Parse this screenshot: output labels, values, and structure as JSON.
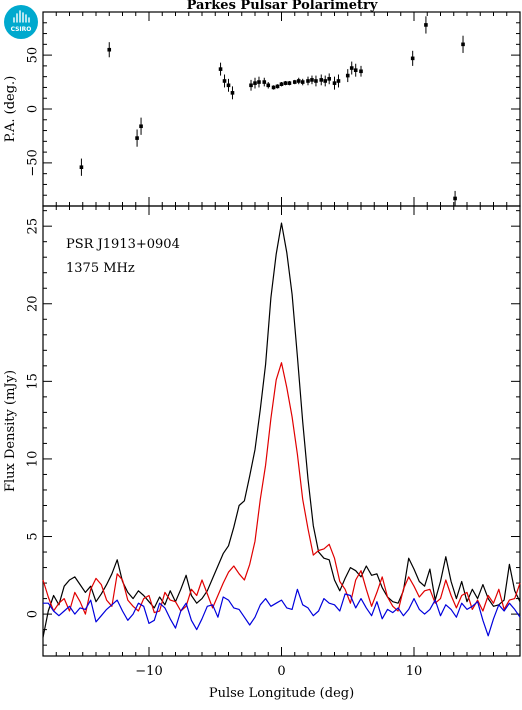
{
  "title": "Parkes Pulsar Polarimetry",
  "logo": {
    "text": "CSIRO",
    "color": "#00a9ce"
  },
  "annotations": {
    "psr": "PSR J1913+0904",
    "freq": "1375 MHz"
  },
  "chart_data": [
    {
      "type": "scatter",
      "name": "position-angle",
      "ylabel": "P.A. (deg.)",
      "xlim": [
        -18,
        18
      ],
      "ylim": [
        -90,
        90
      ],
      "yticks": [
        -50,
        0,
        50
      ],
      "points": [
        {
          "x": -15.1,
          "y": -54,
          "err": 8
        },
        {
          "x": -13.0,
          "y": 55,
          "err": 7
        },
        {
          "x": -10.9,
          "y": -27,
          "err": 8
        },
        {
          "x": -10.6,
          "y": -16,
          "err": 8
        },
        {
          "x": -4.6,
          "y": 37,
          "err": 6
        },
        {
          "x": -4.3,
          "y": 26,
          "err": 6
        },
        {
          "x": -4.0,
          "y": 22,
          "err": 6
        },
        {
          "x": -3.7,
          "y": 15,
          "err": 6
        },
        {
          "x": -2.3,
          "y": 22,
          "err": 5
        },
        {
          "x": -2.0,
          "y": 24,
          "err": 5
        },
        {
          "x": -1.7,
          "y": 25,
          "err": 5
        },
        {
          "x": -1.3,
          "y": 25,
          "err": 4
        },
        {
          "x": -1.0,
          "y": 22,
          "err": 3
        },
        {
          "x": -0.6,
          "y": 20,
          "err": 2
        },
        {
          "x": -0.3,
          "y": 21,
          "err": 2
        },
        {
          "x": 0.0,
          "y": 23,
          "err": 2
        },
        {
          "x": 0.3,
          "y": 24,
          "err": 2
        },
        {
          "x": 0.6,
          "y": 24,
          "err": 2
        },
        {
          "x": 1.0,
          "y": 25,
          "err": 2
        },
        {
          "x": 1.3,
          "y": 26,
          "err": 3
        },
        {
          "x": 1.6,
          "y": 25,
          "err": 3
        },
        {
          "x": 2.0,
          "y": 26,
          "err": 4
        },
        {
          "x": 2.3,
          "y": 27,
          "err": 4
        },
        {
          "x": 2.6,
          "y": 26,
          "err": 5
        },
        {
          "x": 3.0,
          "y": 27,
          "err": 5
        },
        {
          "x": 3.3,
          "y": 26,
          "err": 5
        },
        {
          "x": 3.6,
          "y": 28,
          "err": 5
        },
        {
          "x": 4.0,
          "y": 24,
          "err": 6
        },
        {
          "x": 4.3,
          "y": 26,
          "err": 6
        },
        {
          "x": 5.0,
          "y": 31,
          "err": 6
        },
        {
          "x": 5.3,
          "y": 38,
          "err": 6
        },
        {
          "x": 5.6,
          "y": 36,
          "err": 6
        },
        {
          "x": 6.0,
          "y": 35,
          "err": 5
        },
        {
          "x": 9.9,
          "y": 47,
          "err": 7
        },
        {
          "x": 10.9,
          "y": 78,
          "err": 8
        },
        {
          "x": 13.1,
          "y": -83,
          "err": 7
        },
        {
          "x": 13.7,
          "y": 60,
          "err": 8
        }
      ]
    },
    {
      "type": "line",
      "name": "flux-profile",
      "xlabel": "Pulse Longitude (deg)",
      "ylabel": "Flux Density (mJy)",
      "xlim": [
        -18,
        18
      ],
      "ylim": [
        -2.7,
        26.3
      ],
      "xticks": [
        -10,
        0,
        10
      ],
      "yticks": [
        0,
        5,
        10,
        15,
        20,
        25
      ],
      "series": [
        {
          "color": "#000000",
          "x": [
            -18.0,
            -17.6,
            -17.2,
            -16.8,
            -16.4,
            -16.0,
            -15.6,
            -15.2,
            -14.8,
            -14.4,
            -14.0,
            -13.6,
            -13.2,
            -12.8,
            -12.4,
            -12.0,
            -11.6,
            -11.2,
            -10.8,
            -10.4,
            -10.0,
            -9.6,
            -9.2,
            -8.8,
            -8.4,
            -8.0,
            -7.6,
            -7.2,
            -6.8,
            -6.4,
            -6.0,
            -5.6,
            -5.2,
            -4.8,
            -4.4,
            -4.0,
            -3.6,
            -3.2,
            -2.8,
            -2.4,
            -2.0,
            -1.6,
            -1.2,
            -0.8,
            -0.4,
            0.0,
            0.4,
            0.8,
            1.2,
            1.6,
            2.0,
            2.4,
            2.8,
            3.2,
            3.6,
            4.0,
            4.4,
            4.8,
            5.2,
            5.6,
            6.0,
            6.4,
            6.8,
            7.2,
            7.6,
            8.0,
            8.4,
            8.8,
            9.2,
            9.6,
            10.0,
            10.4,
            10.8,
            11.2,
            11.6,
            12.0,
            12.4,
            12.8,
            13.2,
            13.6,
            14.0,
            14.4,
            14.8,
            15.2,
            15.6,
            16.0,
            16.4,
            16.8,
            17.2,
            17.6,
            18.0
          ],
          "y": [
            -1.5,
            0.2,
            1.2,
            0.6,
            1.8,
            2.2,
            2.4,
            1.9,
            1.4,
            1.8,
            0.8,
            1.3,
            1.9,
            2.6,
            3.5,
            2.1,
            1.4,
            1.0,
            1.5,
            1.2,
            0.8,
            0.4,
            1.1,
            0.6,
            1.5,
            0.8,
            1.6,
            2.5,
            1.2,
            0.7,
            1.0,
            1.5,
            2.3,
            3.1,
            3.9,
            4.4,
            5.6,
            7.0,
            7.3,
            8.9,
            10.6,
            13.2,
            16.1,
            20.4,
            23.2,
            25.2,
            23.3,
            20.6,
            16.6,
            12.4,
            8.7,
            5.7,
            4.0,
            3.6,
            3.5,
            2.2,
            1.5,
            2.3,
            3.0,
            2.8,
            2.4,
            3.1,
            2.5,
            2.6,
            1.7,
            1.1,
            0.8,
            0.7,
            1.5,
            3.6,
            2.9,
            2.1,
            1.8,
            2.9,
            0.9,
            2.1,
            3.7,
            2.1,
            1.0,
            2.1,
            0.8,
            1.6,
            1.0,
            1.9,
            1.0,
            0.5,
            0.6,
            0.9,
            3.2,
            1.5,
            0.8
          ]
        },
        {
          "color": "#e00000",
          "x": [
            -18.0,
            -17.6,
            -17.2,
            -16.8,
            -16.4,
            -16.0,
            -15.6,
            -15.2,
            -14.8,
            -14.4,
            -14.0,
            -13.6,
            -13.2,
            -12.8,
            -12.4,
            -12.0,
            -11.6,
            -11.2,
            -10.8,
            -10.4,
            -10.0,
            -9.6,
            -9.2,
            -8.8,
            -8.4,
            -8.0,
            -7.6,
            -7.2,
            -6.8,
            -6.4,
            -6.0,
            -5.6,
            -5.2,
            -4.8,
            -4.4,
            -4.0,
            -3.6,
            -3.2,
            -2.8,
            -2.4,
            -2.0,
            -1.6,
            -1.2,
            -0.8,
            -0.4,
            0.0,
            0.4,
            0.8,
            1.2,
            1.6,
            2.0,
            2.4,
            2.8,
            3.2,
            3.6,
            4.0,
            4.4,
            4.8,
            5.2,
            5.6,
            6.0,
            6.4,
            6.8,
            7.2,
            7.6,
            8.0,
            8.4,
            8.8,
            9.2,
            9.6,
            10.0,
            10.4,
            10.8,
            11.2,
            11.6,
            12.0,
            12.4,
            12.8,
            13.2,
            13.6,
            14.0,
            14.4,
            14.8,
            15.2,
            15.6,
            16.0,
            16.4,
            16.8,
            17.2,
            17.6,
            18.0
          ],
          "y": [
            2.2,
            1.1,
            0.2,
            0.7,
            1.0,
            0.2,
            1.4,
            0.8,
            0.0,
            1.6,
            2.3,
            1.9,
            0.9,
            0.5,
            2.6,
            2.2,
            0.9,
            0.5,
            0.2,
            1.0,
            1.2,
            0.1,
            0.2,
            1.4,
            0.9,
            0.8,
            0.2,
            0.5,
            1.6,
            1.2,
            2.2,
            1.3,
            0.4,
            1.2,
            2.0,
            2.7,
            3.1,
            2.6,
            2.2,
            3.2,
            4.7,
            7.4,
            9.6,
            12.6,
            15.1,
            16.2,
            14.6,
            12.7,
            10.3,
            7.4,
            5.5,
            3.8,
            4.1,
            4.2,
            4.5,
            3.6,
            2.1,
            1.6,
            0.7,
            2.2,
            2.8,
            1.6,
            0.5,
            1.4,
            2.4,
            1.1,
            0.5,
            0.2,
            1.6,
            2.4,
            1.8,
            1.1,
            1.5,
            1.6,
            0.7,
            1.0,
            2.2,
            1.2,
            0.4,
            1.2,
            1.4,
            0.3,
            0.9,
            0.2,
            1.2,
            0.7,
            1.6,
            0.3,
            0.9,
            1.0,
            2.0
          ]
        },
        {
          "color": "#0000dd",
          "x": [
            -18.0,
            -17.6,
            -17.2,
            -16.8,
            -16.4,
            -16.0,
            -15.6,
            -15.2,
            -14.8,
            -14.4,
            -14.0,
            -13.6,
            -13.2,
            -12.8,
            -12.4,
            -12.0,
            -11.6,
            -11.2,
            -10.8,
            -10.4,
            -10.0,
            -9.6,
            -9.2,
            -8.8,
            -8.4,
            -8.0,
            -7.6,
            -7.2,
            -6.8,
            -6.4,
            -6.0,
            -5.6,
            -5.2,
            -4.8,
            -4.4,
            -4.0,
            -3.6,
            -3.2,
            -2.8,
            -2.4,
            -2.0,
            -1.6,
            -1.2,
            -0.8,
            -0.4,
            0.0,
            0.4,
            0.8,
            1.2,
            1.6,
            2.0,
            2.4,
            2.8,
            3.2,
            3.6,
            4.0,
            4.4,
            4.8,
            5.2,
            5.6,
            6.0,
            6.4,
            6.8,
            7.2,
            7.6,
            8.0,
            8.4,
            8.8,
            9.2,
            9.6,
            10.0,
            10.4,
            10.8,
            11.2,
            11.6,
            12.0,
            12.4,
            12.8,
            13.2,
            13.6,
            14.0,
            14.4,
            14.8,
            15.2,
            15.6,
            16.0,
            16.4,
            16.8,
            17.2,
            17.6,
            18.0
          ],
          "y": [
            0.7,
            0.7,
            0.2,
            -0.1,
            0.2,
            0.5,
            0.0,
            0.4,
            0.3,
            0.9,
            -0.5,
            -0.1,
            0.3,
            0.6,
            0.9,
            0.2,
            -0.4,
            0.0,
            0.7,
            0.5,
            -0.6,
            -0.4,
            0.7,
            0.4,
            -0.3,
            -0.9,
            0.2,
            0.7,
            -0.4,
            -1.0,
            -0.3,
            0.5,
            0.6,
            -0.2,
            1.1,
            0.9,
            0.4,
            0.3,
            -0.2,
            -0.7,
            -0.2,
            0.6,
            1.0,
            0.5,
            0.7,
            0.9,
            0.4,
            0.3,
            1.6,
            0.6,
            0.4,
            -0.1,
            0.2,
            1.0,
            0.7,
            0.6,
            0.2,
            1.3,
            1.2,
            0.4,
            1.0,
            0.4,
            -0.1,
            0.8,
            -0.3,
            0.3,
            0.1,
            0.4,
            -0.1,
            0.3,
            1.0,
            0.3,
            0.0,
            0.3,
            0.9,
            -0.1,
            0.6,
            0.3,
            -0.2,
            0.7,
            0.3,
            0.5,
            0.8,
            -0.4,
            -1.4,
            -0.3,
            0.6,
            0.2,
            0.7,
            0.3,
            -0.2
          ]
        }
      ]
    }
  ]
}
